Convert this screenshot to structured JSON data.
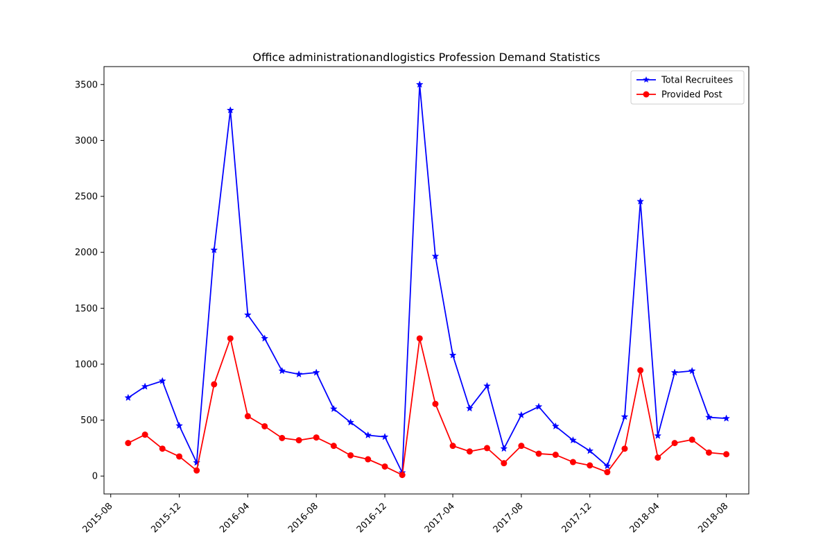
{
  "chart_data": {
    "type": "line",
    "title": "Office administrationandlogistics Profession Demand Statistics",
    "xlabel": "",
    "ylabel": "",
    "x": [
      "2015-09",
      "2015-10",
      "2015-11",
      "2015-12",
      "2016-01",
      "2016-02",
      "2016-03",
      "2016-04",
      "2016-05",
      "2016-06",
      "2016-07",
      "2016-08",
      "2016-09",
      "2016-10",
      "2016-11",
      "2016-12",
      "2017-01",
      "2017-02",
      "2017-03",
      "2017-04",
      "2017-05",
      "2017-06",
      "2017-07",
      "2017-08",
      "2017-09",
      "2017-10",
      "2017-11",
      "2017-12",
      "2018-01",
      "2018-02",
      "2018-03",
      "2018-04",
      "2018-05",
      "2018-06",
      "2018-07",
      "2018-08"
    ],
    "series": [
      {
        "name": "Total Recruitees",
        "color": "#0000ff",
        "marker": "star",
        "values": [
          700,
          800,
          850,
          450,
          120,
          2020,
          3270,
          1440,
          1230,
          940,
          910,
          925,
          600,
          480,
          365,
          350,
          30,
          3500,
          1965,
          1080,
          605,
          805,
          245,
          545,
          620,
          445,
          320,
          225,
          90,
          530,
          2455,
          360,
          925,
          940,
          525,
          515
        ]
      },
      {
        "name": "Provided Post",
        "color": "#ff0000",
        "marker": "circle",
        "values": [
          295,
          370,
          245,
          175,
          50,
          820,
          1230,
          535,
          445,
          340,
          320,
          345,
          270,
          185,
          150,
          85,
          10,
          1230,
          645,
          270,
          220,
          250,
          115,
          270,
          200,
          190,
          125,
          95,
          35,
          245,
          945,
          165,
          295,
          325,
          210,
          195
        ]
      }
    ],
    "xticks": [
      "2015-08",
      "2015-12",
      "2016-04",
      "2016-08",
      "2016-12",
      "2017-04",
      "2017-08",
      "2017-12",
      "2018-04",
      "2018-08"
    ],
    "yticks": [
      0,
      500,
      1000,
      1500,
      2000,
      2500,
      3000,
      3500
    ],
    "ylim": [
      -160,
      3660
    ],
    "xlim": [
      "2015-07-20",
      "2018-09-10"
    ],
    "grid": false,
    "legend_position": "top-right"
  }
}
